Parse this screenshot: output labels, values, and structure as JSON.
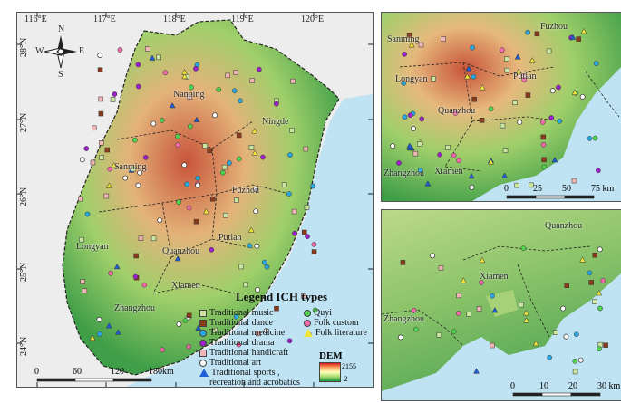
{
  "main": {
    "lon_labels": [
      "116°E",
      "117°E",
      "118°E",
      "119°E",
      "120°E"
    ],
    "lat_labels": [
      "28°N",
      "27°N",
      "26°N",
      "25°N",
      "24°N"
    ],
    "compass": {
      "n": "N",
      "s": "S",
      "e": "E",
      "w": "W"
    },
    "cities": [
      "Nanping",
      "Ningde",
      "Sanming",
      "Fuzhou",
      "Longyan",
      "Putian",
      "Quanzhou",
      "Xiamen",
      "Zhangzhou"
    ],
    "scale": {
      "ticks": [
        "0",
        "60",
        "120",
        "180km"
      ]
    }
  },
  "inset_a": {
    "cities": [
      "Fuzhou",
      "Sanming",
      "Longyan",
      "Putian",
      "Quanzhou",
      "Zhangzhou",
      "Xiamen"
    ],
    "scale": {
      "ticks": [
        "0",
        "25",
        "50",
        "75 km"
      ]
    }
  },
  "inset_b": {
    "cities": [
      "Quanzhou",
      "Xiamen",
      "Zhangzhou"
    ],
    "scale": {
      "ticks": [
        "0",
        "10",
        "20",
        "30 km"
      ]
    }
  },
  "legend": {
    "title": "Legend ICH types",
    "items_left": [
      {
        "label": "Traditional music",
        "shape": "square",
        "color": "#c8e6a0"
      },
      {
        "label": "Traditional dance",
        "shape": "square",
        "color": "#8b3a1a"
      },
      {
        "label": "Traditional medicine",
        "shape": "circle",
        "color": "#2aa7e0"
      },
      {
        "label": "Traditional drama",
        "shape": "circle",
        "color": "#9a22c8"
      },
      {
        "label": "Traditional handicraft",
        "shape": "square",
        "color": "#f2b5b5"
      },
      {
        "label": "Traditional art",
        "shape": "ring",
        "color": "#ffffff"
      },
      {
        "label": "Traditional sports ,",
        "shape": "triangle",
        "color": "#1e5fd6"
      },
      {
        "label": "recreation and acrobatics",
        "shape": "none",
        "color": ""
      }
    ],
    "items_right": [
      {
        "label": "Quyi",
        "shape": "circle",
        "color": "#4fd24f"
      },
      {
        "label": "Folk custom",
        "shape": "circle",
        "color": "#f06aa8"
      },
      {
        "label": "Folk literature",
        "shape": "triangle",
        "color": "#f0e43a"
      }
    ],
    "dem": {
      "title": "DEM",
      "max": "2155",
      "min": "-2"
    }
  }
}
